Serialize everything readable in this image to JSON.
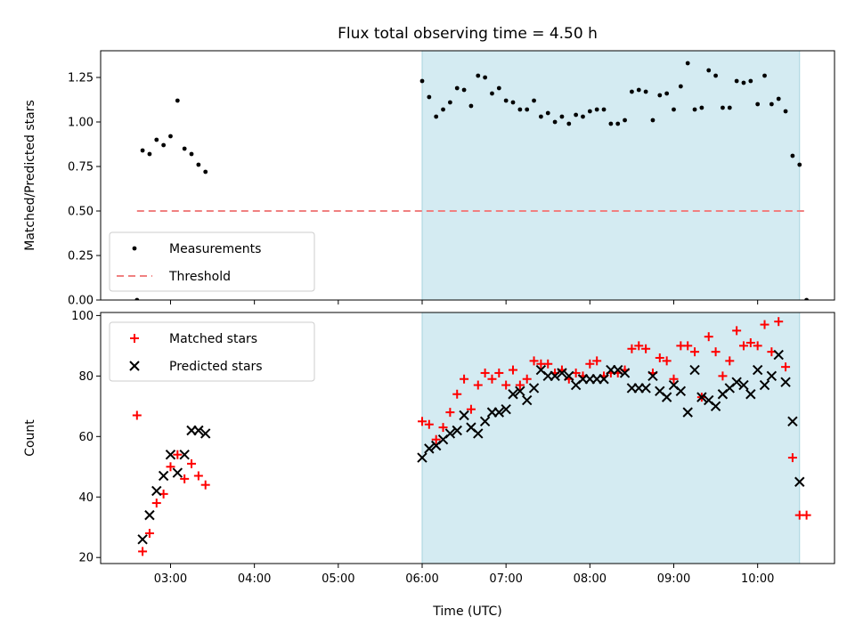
{
  "chart_data": [
    {
      "type": "scatter",
      "title": "Flux total observing time = 4.50 h",
      "ylabel": "Matched/Predicted stars",
      "xlabel": "",
      "ylim": [
        0,
        1.4
      ],
      "yticks": [
        "0.00",
        "0.25",
        "0.50",
        "0.75",
        "1.00",
        "1.25"
      ],
      "shaded_range": [
        "06:00",
        "10:30"
      ],
      "shade_color": "#d4ebf2",
      "legend": "bottom-left",
      "series": [
        {
          "name": "Measurements",
          "marker": "dot",
          "color": "#000000",
          "points": [
            [
              "02:36",
              0.0
            ],
            [
              "02:40",
              0.84
            ],
            [
              "02:45",
              0.82
            ],
            [
              "02:50",
              0.9
            ],
            [
              "02:55",
              0.87
            ],
            [
              "03:00",
              0.92
            ],
            [
              "03:05",
              1.12
            ],
            [
              "03:10",
              0.85
            ],
            [
              "03:15",
              0.82
            ],
            [
              "03:20",
              0.76
            ],
            [
              "03:25",
              0.72
            ],
            [
              "06:00",
              1.23
            ],
            [
              "06:05",
              1.14
            ],
            [
              "06:10",
              1.03
            ],
            [
              "06:15",
              1.07
            ],
            [
              "06:20",
              1.11
            ],
            [
              "06:25",
              1.19
            ],
            [
              "06:30",
              1.18
            ],
            [
              "06:35",
              1.09
            ],
            [
              "06:40",
              1.26
            ],
            [
              "06:45",
              1.25
            ],
            [
              "06:50",
              1.16
            ],
            [
              "06:55",
              1.19
            ],
            [
              "07:00",
              1.12
            ],
            [
              "07:05",
              1.11
            ],
            [
              "07:10",
              1.07
            ],
            [
              "07:15",
              1.07
            ],
            [
              "07:20",
              1.12
            ],
            [
              "07:25",
              1.03
            ],
            [
              "07:30",
              1.05
            ],
            [
              "07:35",
              1.0
            ],
            [
              "07:40",
              1.03
            ],
            [
              "07:45",
              0.99
            ],
            [
              "07:50",
              1.04
            ],
            [
              "07:55",
              1.03
            ],
            [
              "08:00",
              1.06
            ],
            [
              "08:05",
              1.07
            ],
            [
              "08:10",
              1.07
            ],
            [
              "08:15",
              0.99
            ],
            [
              "08:20",
              0.99
            ],
            [
              "08:25",
              1.01
            ],
            [
              "08:30",
              1.17
            ],
            [
              "08:35",
              1.18
            ],
            [
              "08:40",
              1.17
            ],
            [
              "08:45",
              1.01
            ],
            [
              "08:50",
              1.15
            ],
            [
              "08:55",
              1.16
            ],
            [
              "09:00",
              1.07
            ],
            [
              "09:05",
              1.2
            ],
            [
              "09:10",
              1.33
            ],
            [
              "09:15",
              1.07
            ],
            [
              "09:20",
              1.08
            ],
            [
              "09:25",
              1.29
            ],
            [
              "09:30",
              1.26
            ],
            [
              "09:35",
              1.08
            ],
            [
              "09:40",
              1.08
            ],
            [
              "09:45",
              1.23
            ],
            [
              "09:50",
              1.22
            ],
            [
              "09:55",
              1.23
            ],
            [
              "10:00",
              1.1
            ],
            [
              "10:05",
              1.26
            ],
            [
              "10:10",
              1.1
            ],
            [
              "10:15",
              1.13
            ],
            [
              "10:20",
              1.06
            ],
            [
              "10:25",
              0.81
            ],
            [
              "10:30",
              0.76
            ],
            [
              "10:35",
              0.0
            ]
          ]
        },
        {
          "name": "Threshold",
          "marker": "dashed-line",
          "color": "#f08080",
          "points": [
            [
              "02:36",
              0.5
            ],
            [
              "10:35",
              0.5
            ]
          ]
        }
      ]
    },
    {
      "type": "scatter",
      "title": "",
      "ylabel": "Count",
      "xlabel": "Time (UTC)",
      "ylim": [
        18,
        101
      ],
      "yticks": [
        "20",
        "40",
        "60",
        "80",
        "100"
      ],
      "xlim": [
        "02:10",
        "10:55"
      ],
      "xticks": [
        "03:00",
        "04:00",
        "05:00",
        "06:00",
        "07:00",
        "08:00",
        "09:00",
        "10:00"
      ],
      "shaded_range": [
        "06:00",
        "10:30"
      ],
      "shade_color": "#d4ebf2",
      "legend": "top-left",
      "series": [
        {
          "name": "Matched stars",
          "marker": "plus",
          "color": "#ff0000",
          "points": [
            [
              "02:36",
              67
            ],
            [
              "02:40",
              22
            ],
            [
              "02:45",
              28
            ],
            [
              "02:50",
              38
            ],
            [
              "02:55",
              41
            ],
            [
              "03:00",
              50
            ],
            [
              "03:05",
              54
            ],
            [
              "03:10",
              46
            ],
            [
              "03:15",
              51
            ],
            [
              "03:20",
              47
            ],
            [
              "03:25",
              44
            ],
            [
              "06:00",
              65
            ],
            [
              "06:05",
              64
            ],
            [
              "06:10",
              59
            ],
            [
              "06:15",
              63
            ],
            [
              "06:20",
              68
            ],
            [
              "06:25",
              74
            ],
            [
              "06:30",
              79
            ],
            [
              "06:35",
              69
            ],
            [
              "06:40",
              77
            ],
            [
              "06:45",
              81
            ],
            [
              "06:50",
              79
            ],
            [
              "06:55",
              81
            ],
            [
              "07:00",
              77
            ],
            [
              "07:05",
              82
            ],
            [
              "07:10",
              77
            ],
            [
              "07:15",
              79
            ],
            [
              "07:20",
              85
            ],
            [
              "07:25",
              84
            ],
            [
              "07:30",
              84
            ],
            [
              "07:35",
              81
            ],
            [
              "07:40",
              82
            ],
            [
              "07:45",
              79
            ],
            [
              "07:50",
              81
            ],
            [
              "07:55",
              80
            ],
            [
              "08:00",
              84
            ],
            [
              "08:05",
              85
            ],
            [
              "08:10",
              80
            ],
            [
              "08:15",
              81
            ],
            [
              "08:20",
              81
            ],
            [
              "08:25",
              82
            ],
            [
              "08:30",
              89
            ],
            [
              "08:35",
              90
            ],
            [
              "08:40",
              89
            ],
            [
              "08:45",
              81
            ],
            [
              "08:50",
              86
            ],
            [
              "08:55",
              85
            ],
            [
              "09:00",
              79
            ],
            [
              "09:05",
              90
            ],
            [
              "09:10",
              90
            ],
            [
              "09:15",
              88
            ],
            [
              "09:20",
              73
            ],
            [
              "09:25",
              93
            ],
            [
              "09:30",
              88
            ],
            [
              "09:35",
              80
            ],
            [
              "09:40",
              85
            ],
            [
              "09:45",
              95
            ],
            [
              "09:50",
              90
            ],
            [
              "09:55",
              91
            ],
            [
              "10:00",
              90
            ],
            [
              "10:05",
              97
            ],
            [
              "10:10",
              88
            ],
            [
              "10:15",
              98
            ],
            [
              "10:20",
              83
            ],
            [
              "10:25",
              53
            ],
            [
              "10:30",
              34
            ],
            [
              "10:35",
              34
            ]
          ]
        },
        {
          "name": "Predicted stars",
          "marker": "x",
          "color": "#000000",
          "points": [
            [
              "02:40",
              26
            ],
            [
              "02:45",
              34
            ],
            [
              "02:50",
              42
            ],
            [
              "02:55",
              47
            ],
            [
              "03:00",
              54
            ],
            [
              "03:05",
              48
            ],
            [
              "03:10",
              54
            ],
            [
              "03:15",
              62
            ],
            [
              "03:20",
              62
            ],
            [
              "03:25",
              61
            ],
            [
              "06:00",
              53
            ],
            [
              "06:05",
              56
            ],
            [
              "06:10",
              57
            ],
            [
              "06:15",
              59
            ],
            [
              "06:20",
              61
            ],
            [
              "06:25",
              62
            ],
            [
              "06:30",
              67
            ],
            [
              "06:35",
              63
            ],
            [
              "06:40",
              61
            ],
            [
              "06:45",
              65
            ],
            [
              "06:50",
              68
            ],
            [
              "06:55",
              68
            ],
            [
              "07:00",
              69
            ],
            [
              "07:05",
              74
            ],
            [
              "07:10",
              75
            ],
            [
              "07:15",
              72
            ],
            [
              "07:20",
              76
            ],
            [
              "07:25",
              82
            ],
            [
              "07:30",
              80
            ],
            [
              "07:35",
              80
            ],
            [
              "07:40",
              81
            ],
            [
              "07:45",
              80
            ],
            [
              "07:50",
              77
            ],
            [
              "07:55",
              79
            ],
            [
              "08:00",
              79
            ],
            [
              "08:05",
              79
            ],
            [
              "08:10",
              79
            ],
            [
              "08:15",
              82
            ],
            [
              "08:20",
              82
            ],
            [
              "08:25",
              81
            ],
            [
              "08:30",
              76
            ],
            [
              "08:35",
              76
            ],
            [
              "08:40",
              76
            ],
            [
              "08:45",
              80
            ],
            [
              "08:50",
              75
            ],
            [
              "08:55",
              73
            ],
            [
              "09:00",
              77
            ],
            [
              "09:05",
              75
            ],
            [
              "09:10",
              68
            ],
            [
              "09:15",
              82
            ],
            [
              "09:20",
              73
            ],
            [
              "09:25",
              72
            ],
            [
              "09:30",
              70
            ],
            [
              "09:35",
              74
            ],
            [
              "09:40",
              76
            ],
            [
              "09:45",
              78
            ],
            [
              "09:50",
              77
            ],
            [
              "09:55",
              74
            ],
            [
              "10:00",
              82
            ],
            [
              "10:05",
              77
            ],
            [
              "10:10",
              80
            ],
            [
              "10:15",
              87
            ],
            [
              "10:20",
              78
            ],
            [
              "10:25",
              65
            ],
            [
              "10:30",
              45
            ]
          ]
        }
      ]
    }
  ]
}
